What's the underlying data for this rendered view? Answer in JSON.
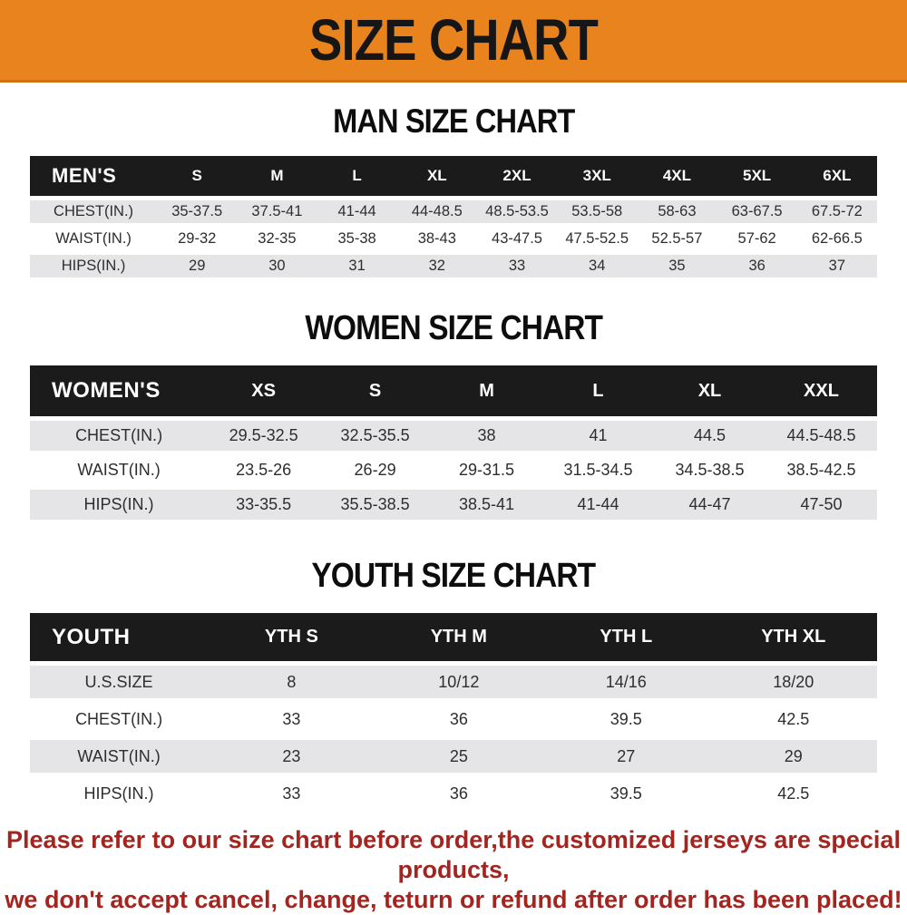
{
  "banner": {
    "title": "SIZE CHART"
  },
  "colors": {
    "banner_orange": "#E8831D",
    "header_black": "#1B1B1B",
    "row_gray": "#E5E5E7",
    "note_red": "#A3251F"
  },
  "men": {
    "heading": "MAN SIZE CHART",
    "header": [
      "MEN'S",
      "S",
      "M",
      "L",
      "XL",
      "2XL",
      "3XL",
      "4XL",
      "5XL",
      "6XL"
    ],
    "rows": [
      [
        "CHEST(IN.)",
        "35-37.5",
        "37.5-41",
        "41-44",
        "44-48.5",
        "48.5-53.5",
        "53.5-58",
        "58-63",
        "63-67.5",
        "67.5-72"
      ],
      [
        "WAIST(IN.)",
        "29-32",
        "32-35",
        "35-38",
        "38-43",
        "43-47.5",
        "47.5-52.5",
        "52.5-57",
        "57-62",
        "62-66.5"
      ],
      [
        "HIPS(IN.)",
        "29",
        "30",
        "31",
        "32",
        "33",
        "34",
        "35",
        "36",
        "37"
      ]
    ]
  },
  "women": {
    "heading": "WOMEN SIZE CHART",
    "header": [
      "WOMEN'S",
      "XS",
      "S",
      "M",
      "L",
      "XL",
      "XXL"
    ],
    "rows": [
      [
        "CHEST(IN.)",
        "29.5-32.5",
        "32.5-35.5",
        "38",
        "41",
        "44.5",
        "44.5-48.5"
      ],
      [
        "WAIST(IN.)",
        "23.5-26",
        "26-29",
        "29-31.5",
        "31.5-34.5",
        "34.5-38.5",
        "38.5-42.5"
      ],
      [
        "HIPS(IN.)",
        "33-35.5",
        "35.5-38.5",
        "38.5-41",
        "41-44",
        "44-47",
        "47-50"
      ]
    ]
  },
  "youth": {
    "heading": "YOUTH SIZE CHART",
    "header": [
      "YOUTH",
      "YTH S",
      "YTH M",
      "YTH L",
      "YTH XL"
    ],
    "rows": [
      [
        "U.S.SIZE",
        "8",
        "10/12",
        "14/16",
        "18/20"
      ],
      [
        "CHEST(IN.)",
        "33",
        "36",
        "39.5",
        "42.5"
      ],
      [
        "WAIST(IN.)",
        "23",
        "25",
        "27",
        "29"
      ],
      [
        "HIPS(IN.)",
        "33",
        "36",
        "39.5",
        "42.5"
      ]
    ]
  },
  "note": {
    "line1": "Please refer to our size chart before order,the customized jerseys are special products,",
    "line2": "we don't accept cancel, change, teturn or refund after order has been placed!"
  }
}
